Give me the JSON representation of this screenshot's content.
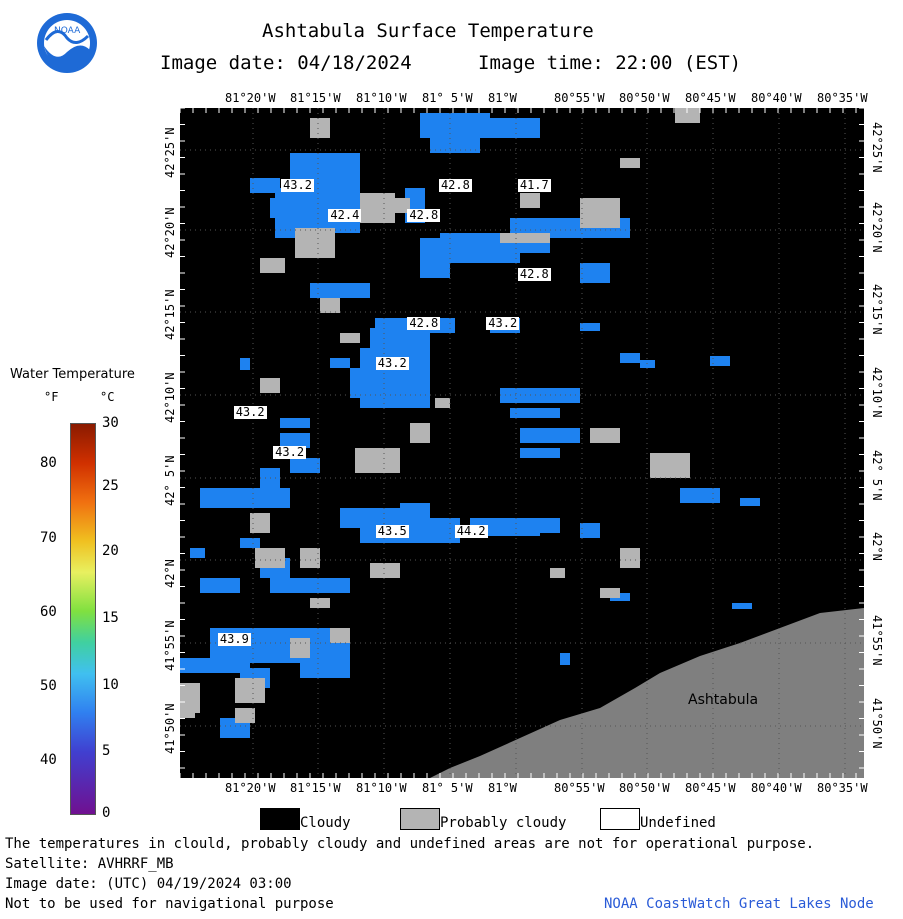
{
  "header": {
    "title": "Ashtabula Surface Temperature",
    "image_date_label": "Image date: 04/18/2024",
    "image_time_label": "Image time: 22:00 (EST)",
    "logo_text": "NOAA"
  },
  "map": {
    "lon_ticks": [
      "81°20'W",
      "81°15'W",
      "81°10'W",
      "81° 5'W",
      "81°W",
      "80°55'W",
      "80°50'W",
      "80°45'W",
      "80°40'W",
      "80°35'W"
    ],
    "lat_ticks": [
      "42°25'N",
      "42°20'N",
      "42°15'N",
      "42°10'N",
      "42° 5'N",
      "42°N",
      "41°55'N",
      "41°50'N"
    ],
    "place_label": "Ashtabula",
    "temp_labels": [
      {
        "text": "43.2",
        "lon": -81.28,
        "lat": 42.38
      },
      {
        "text": "42.8",
        "lon": -81.08,
        "lat": 42.38
      },
      {
        "text": "41.7",
        "lon": -80.98,
        "lat": 42.38
      },
      {
        "text": "42.4",
        "lon": -81.22,
        "lat": 42.35
      },
      {
        "text": "42.8",
        "lon": -81.12,
        "lat": 42.35
      },
      {
        "text": "42.8",
        "lon": -80.98,
        "lat": 42.29
      },
      {
        "text": "42.8",
        "lon": -81.12,
        "lat": 42.24
      },
      {
        "text": "43.2",
        "lon": -81.02,
        "lat": 42.24
      },
      {
        "text": "43.2",
        "lon": -81.16,
        "lat": 42.2
      },
      {
        "text": "43.2",
        "lon": -81.34,
        "lat": 42.15
      },
      {
        "text": "43.2",
        "lon": -81.29,
        "lat": 42.11
      },
      {
        "text": "43.5",
        "lon": -81.16,
        "lat": 42.03
      },
      {
        "text": "44.2",
        "lon": -81.06,
        "lat": 42.03
      },
      {
        "text": "43.9",
        "lon": -81.36,
        "lat": 41.92
      }
    ],
    "colors": {
      "cloudy": "#000000",
      "probably_cloudy": "#b4b4b4",
      "water": "#1e82f0",
      "land": "#7f7f7f",
      "undefined": "#ffffff"
    }
  },
  "legend": {
    "title": "Water Temperature",
    "f_label": "°F",
    "c_label": "°C",
    "f_ticks": [
      "80",
      "70",
      "60",
      "50",
      "40"
    ],
    "c_ticks": [
      "30",
      "25",
      "20",
      "15",
      "10",
      "5",
      "0"
    ],
    "key": [
      {
        "label": "Cloudy",
        "color": "#000000"
      },
      {
        "label": "Probably cloudy",
        "color": "#b4b4b4"
      },
      {
        "label": "Undefined",
        "color": "#ffffff"
      }
    ]
  },
  "footer": {
    "disclaimer": "The temperatures in clould, probably cloudy and undefined areas are not for operational purpose.",
    "satellite": "Satellite: AVHRRF_MB",
    "utc_date": "Image date: (UTC) 04/19/2024  03:00",
    "nav_warning": "Not to be used for navigational purpose",
    "credit": "NOAA CoastWatch Great Lakes Node"
  }
}
